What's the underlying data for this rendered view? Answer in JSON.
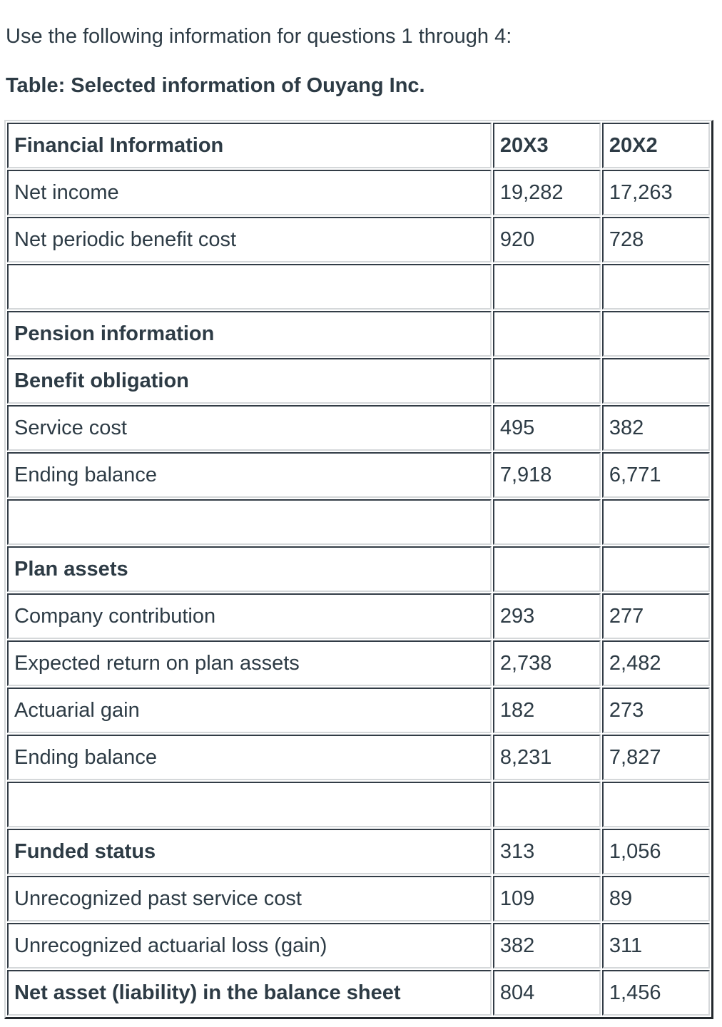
{
  "page": {
    "intro": "Use the following information for questions 1 through 4:",
    "table_caption": "Table: Selected information of Ouyang Inc."
  },
  "table": {
    "columns": {
      "label": "Financial Information",
      "y1": "20X3",
      "y2": "20X2"
    },
    "rows": [
      {
        "label": "Net income",
        "x3": "19,282",
        "x2": "17,263"
      },
      {
        "label": "Net periodic benefit cost",
        "x3": "920",
        "x2": "728"
      },
      {
        "label": "",
        "x3": "",
        "x2": ""
      },
      {
        "label": "Pension information",
        "x3": "",
        "x2": ""
      },
      {
        "label": "Benefit obligation",
        "x3": "",
        "x2": ""
      },
      {
        "label": "Service cost",
        "x3": "495",
        "x2": "382"
      },
      {
        "label": "Ending balance",
        "x3": "7,918",
        "x2": "6,771"
      },
      {
        "label": "",
        "x3": "",
        "x2": ""
      },
      {
        "label": "Plan assets",
        "x3": "",
        "x2": ""
      },
      {
        "label": "Company contribution",
        "x3": "293",
        "x2": "277"
      },
      {
        "label": "Expected return on plan assets",
        "x3": "2,738",
        "x2": "2,482"
      },
      {
        "label": "Actuarial gain",
        "x3": "182",
        "x2": "273"
      },
      {
        "label": "Ending balance",
        "x3": "8,231",
        "x2": "7,827"
      },
      {
        "label": "",
        "x3": "",
        "x2": ""
      },
      {
        "label": "Funded status",
        "x3": "313",
        "x2": "1,056"
      },
      {
        "label": "Unrecognized past service cost",
        "x3": "109",
        "x2": "89"
      },
      {
        "label": "Unrecognized actuarial loss (gain)",
        "x3": "382",
        "x2": "311"
      },
      {
        "label": "Net asset (liability) in the balance sheet",
        "x3": "804",
        "x2": "1,456"
      }
    ],
    "colors": {
      "text": "#2d3b45",
      "border_dark": "#323c46",
      "border_light": "#d5d8da",
      "outer_frame_dark": "#23282d"
    }
  }
}
